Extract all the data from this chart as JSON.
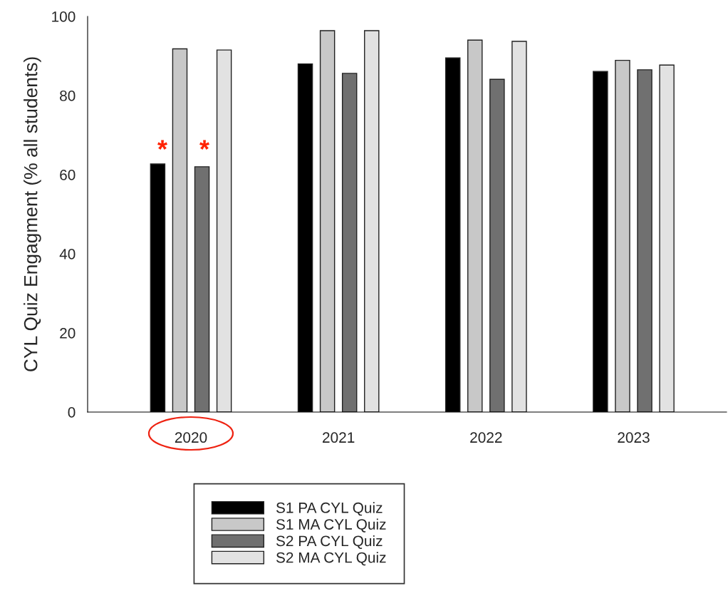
{
  "chart_data": {
    "type": "bar",
    "ylabel": "CYL Quiz Engagment (% all students)",
    "categories": [
      "2020",
      "2021",
      "2022",
      "2023"
    ],
    "series": [
      {
        "name": "S1 PA CYL Quiz",
        "color": "#000000",
        "values": [
          62.7,
          88.0,
          89.5,
          86.1
        ]
      },
      {
        "name": "S1 MA CYL Quiz",
        "color": "#c8c8c8",
        "values": [
          91.8,
          96.4,
          94.0,
          88.9
        ]
      },
      {
        "name": "S2 PA CYL Quiz",
        "color": "#707070",
        "values": [
          62.0,
          85.6,
          84.1,
          86.5
        ]
      },
      {
        "name": "S2 MA CYL Quiz",
        "color": "#e2e2e2",
        "values": [
          91.5,
          96.4,
          93.7,
          87.7
        ]
      }
    ],
    "ylim": [
      0,
      100
    ],
    "yticks": [
      0,
      20,
      40,
      60,
      80,
      100
    ],
    "grid": false,
    "legend": "bottom",
    "annotations": [
      "*",
      "*"
    ]
  }
}
